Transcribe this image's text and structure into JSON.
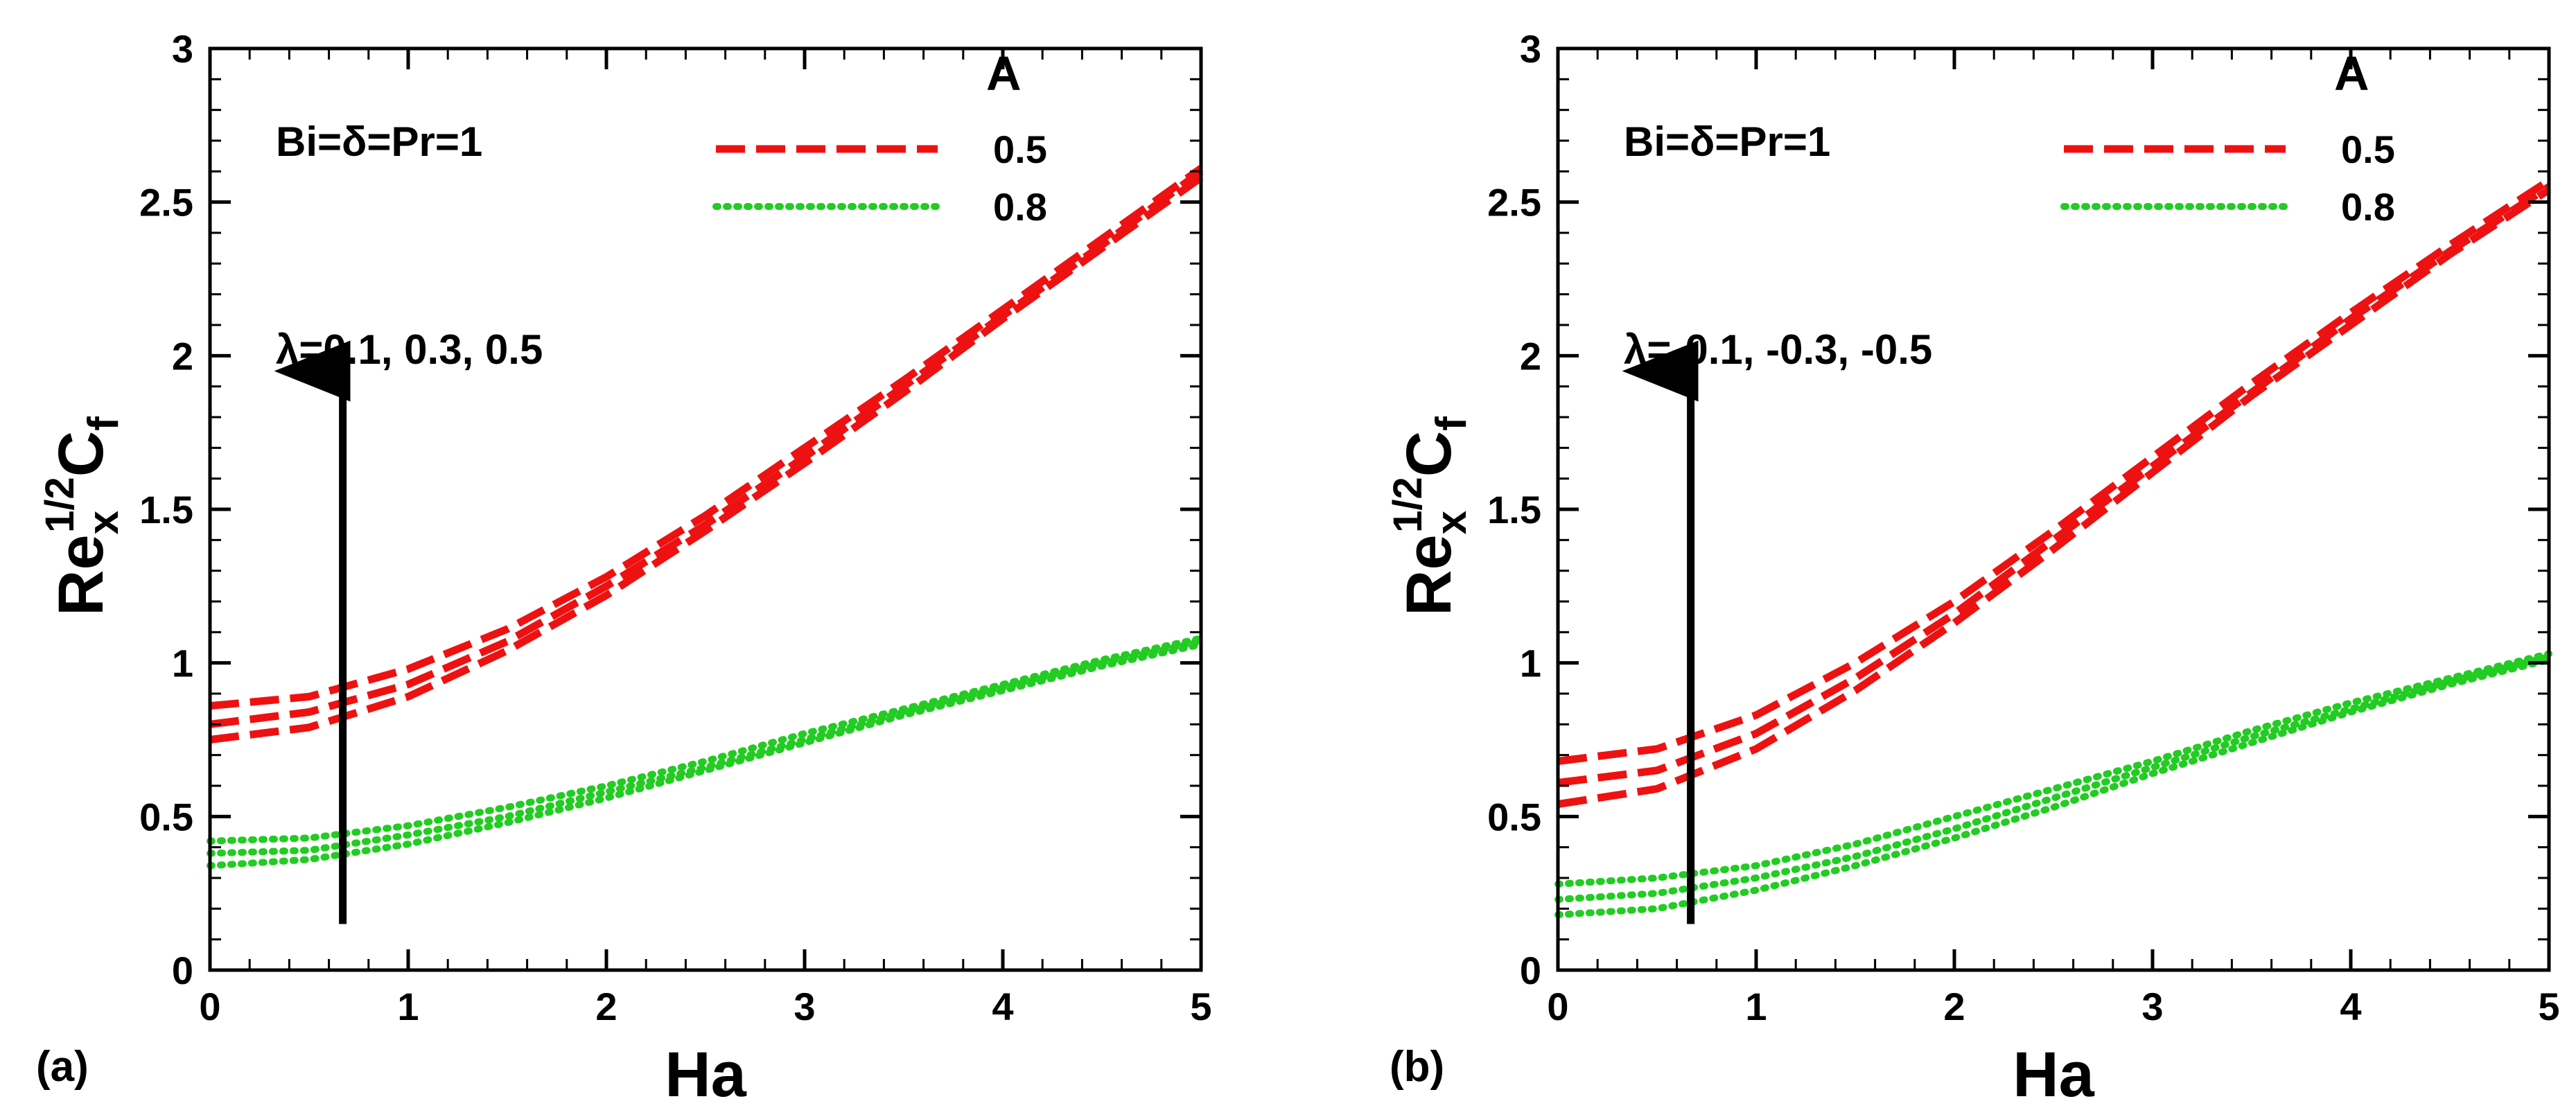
{
  "colors": {
    "red": "#ee1111",
    "green": "#22cc22",
    "arrow": "#000000"
  },
  "chart_data": [
    {
      "type": "line",
      "panel_label": "(a)",
      "xlabel": "Ha",
      "ylabel": {
        "base": "Re",
        "sub": "x",
        "sup": "1/2",
        "second": "C",
        "second_sub": "f"
      },
      "xlim": [
        0,
        5
      ],
      "ylim": [
        0,
        3
      ],
      "xticks": [
        "0",
        "1",
        "2",
        "3",
        "4",
        "5"
      ],
      "yticks": [
        "0",
        "0.5",
        "1",
        "1.5",
        "2",
        "2.5",
        "3"
      ],
      "params": "Bi=δ=Pr=1",
      "annotation": "λ=0.1, 0.3, 0.5",
      "arrow": {
        "x": 0.67,
        "y_from": 0.15,
        "y_to": 1.95
      },
      "legend": {
        "title": "A",
        "entries": [
          "0.5",
          "0.8"
        ]
      },
      "x": [
        0,
        0.5,
        1,
        1.5,
        2,
        2.5,
        3,
        3.5,
        4,
        4.5,
        5
      ],
      "series": [
        {
          "name": "A=0.5, λ=0.1",
          "legend": "0.5",
          "values": [
            0.75,
            0.79,
            0.89,
            1.04,
            1.22,
            1.43,
            1.65,
            1.88,
            2.12,
            2.35,
            2.58
          ]
        },
        {
          "name": "A=0.5, λ=0.3",
          "legend": "0.5",
          "values": [
            0.8,
            0.84,
            0.93,
            1.07,
            1.25,
            1.45,
            1.67,
            1.9,
            2.13,
            2.36,
            2.6
          ]
        },
        {
          "name": "A=0.5, λ=0.5",
          "legend": "0.5",
          "values": [
            0.86,
            0.89,
            0.98,
            1.11,
            1.28,
            1.48,
            1.7,
            1.92,
            2.15,
            2.38,
            2.61
          ]
        },
        {
          "name": "A=0.8, λ=0.1",
          "legend": "0.8",
          "values": [
            0.34,
            0.36,
            0.41,
            0.48,
            0.56,
            0.65,
            0.74,
            0.83,
            0.91,
            0.99,
            1.06
          ]
        },
        {
          "name": "A=0.8, λ=0.3",
          "legend": "0.8",
          "values": [
            0.38,
            0.39,
            0.44,
            0.5,
            0.58,
            0.66,
            0.75,
            0.84,
            0.92,
            1.0,
            1.07
          ]
        },
        {
          "name": "A=0.8, λ=0.5",
          "legend": "0.8",
          "values": [
            0.42,
            0.43,
            0.47,
            0.53,
            0.6,
            0.68,
            0.77,
            0.85,
            0.93,
            1.01,
            1.08
          ]
        }
      ]
    },
    {
      "type": "line",
      "panel_label": "(b)",
      "xlabel": "Ha",
      "ylabel": {
        "base": "Re",
        "sub": "x",
        "sup": "1/2",
        "second": "C",
        "second_sub": "f"
      },
      "xlim": [
        0,
        5
      ],
      "ylim": [
        0,
        3
      ],
      "xticks": [
        "0",
        "1",
        "2",
        "3",
        "4",
        "5"
      ],
      "yticks": [
        "0",
        "0.5",
        "1",
        "1.5",
        "2",
        "2.5",
        "3"
      ],
      "params": "Bi=δ=Pr=1",
      "annotation": "λ=-0.1, -0.3, -0.5",
      "arrow": {
        "x": 0.67,
        "y_from": 0.15,
        "y_to": 1.95
      },
      "legend": {
        "title": "A",
        "entries": [
          "0.5",
          "0.8"
        ]
      },
      "x": [
        0,
        0.5,
        1,
        1.5,
        2,
        2.5,
        3,
        3.5,
        4,
        4.5,
        5
      ],
      "series": [
        {
          "name": "A=0.5, λ=-0.1",
          "legend": "0.5",
          "values": [
            0.54,
            0.59,
            0.72,
            0.91,
            1.13,
            1.37,
            1.62,
            1.87,
            2.1,
            2.33,
            2.54
          ]
        },
        {
          "name": "A=0.5, λ=-0.3",
          "legend": "0.5",
          "values": [
            0.61,
            0.65,
            0.77,
            0.95,
            1.16,
            1.4,
            1.64,
            1.88,
            2.12,
            2.34,
            2.55
          ]
        },
        {
          "name": "A=0.5, λ=-0.5",
          "legend": "0.5",
          "values": [
            0.68,
            0.72,
            0.83,
            1.0,
            1.2,
            1.43,
            1.67,
            1.91,
            2.14,
            2.36,
            2.57
          ]
        },
        {
          "name": "A=0.8, λ=-0.1",
          "legend": "0.8",
          "values": [
            0.18,
            0.2,
            0.26,
            0.34,
            0.43,
            0.53,
            0.64,
            0.74,
            0.84,
            0.93,
            1.01
          ]
        },
        {
          "name": "A=0.8, λ=-0.3",
          "legend": "0.8",
          "values": [
            0.23,
            0.25,
            0.3,
            0.37,
            0.46,
            0.56,
            0.66,
            0.76,
            0.85,
            0.94,
            1.02
          ]
        },
        {
          "name": "A=0.8, λ=-0.5",
          "legend": "0.8",
          "values": [
            0.28,
            0.3,
            0.34,
            0.41,
            0.5,
            0.59,
            0.68,
            0.78,
            0.87,
            0.95,
            1.03
          ]
        }
      ]
    }
  ]
}
